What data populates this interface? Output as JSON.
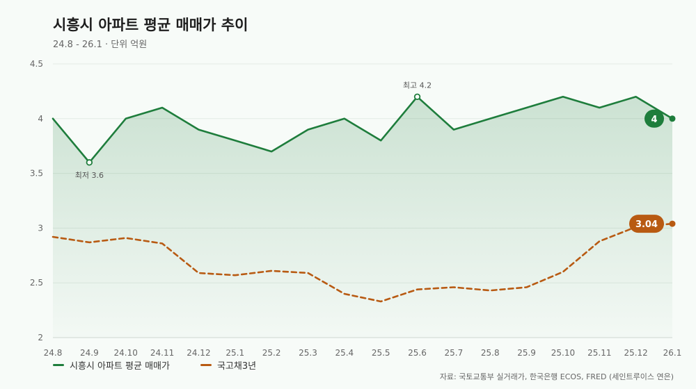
{
  "title": "시흥시 아파트 평균 매매가 추이",
  "subtitle": "24.8 - 26.1 · 단위 억원",
  "source": "자료: 국토교통부 실거래가, 한국은행 ECOS, FRED (세인트루이스 연은)",
  "colors": {
    "apt": "#1e7d3c",
    "bond": "#b85a12",
    "grid": "#e3ebe5",
    "axis_text": "#666666"
  },
  "chart_data": {
    "type": "line",
    "title": "시흥시 아파트 평균 매매가 추이",
    "categories": [
      "24.8",
      "24.9",
      "24.10",
      "24.11",
      "24.12",
      "25.1",
      "25.2",
      "25.3",
      "25.4",
      "25.5",
      "25.6",
      "25.7",
      "25.8",
      "25.9",
      "25.10",
      "25.11",
      "25.12",
      "26.1"
    ],
    "ylim": [
      2,
      4.5
    ],
    "yticks": [
      "2",
      "2.5",
      "3",
      "3.5",
      "4",
      "4.5"
    ],
    "grid": true,
    "legend_position": "bottom-left",
    "series": [
      {
        "name": "시흥시 아파트 평균 매매가",
        "style": "solid",
        "area": true,
        "values": [
          4.0,
          3.6,
          4.0,
          4.1,
          3.9,
          3.8,
          3.7,
          3.9,
          4.0,
          3.8,
          4.2,
          3.9,
          4.0,
          4.1,
          4.2,
          4.1,
          4.2,
          4.0
        ],
        "end_label": "4"
      },
      {
        "name": "국고채3년",
        "style": "dashed",
        "area": false,
        "values": [
          2.92,
          2.87,
          2.91,
          2.86,
          2.59,
          2.57,
          2.61,
          2.59,
          2.4,
          2.33,
          2.44,
          2.46,
          2.43,
          2.46,
          2.6,
          2.88,
          3.01,
          3.04
        ],
        "end_label": "3.04"
      }
    ],
    "annotations": [
      {
        "text": "최저 3.6",
        "category": "24.9",
        "value": 3.6,
        "position": "below"
      },
      {
        "text": "최고 4.2",
        "category": "25.6",
        "value": 4.2,
        "position": "above"
      }
    ]
  }
}
